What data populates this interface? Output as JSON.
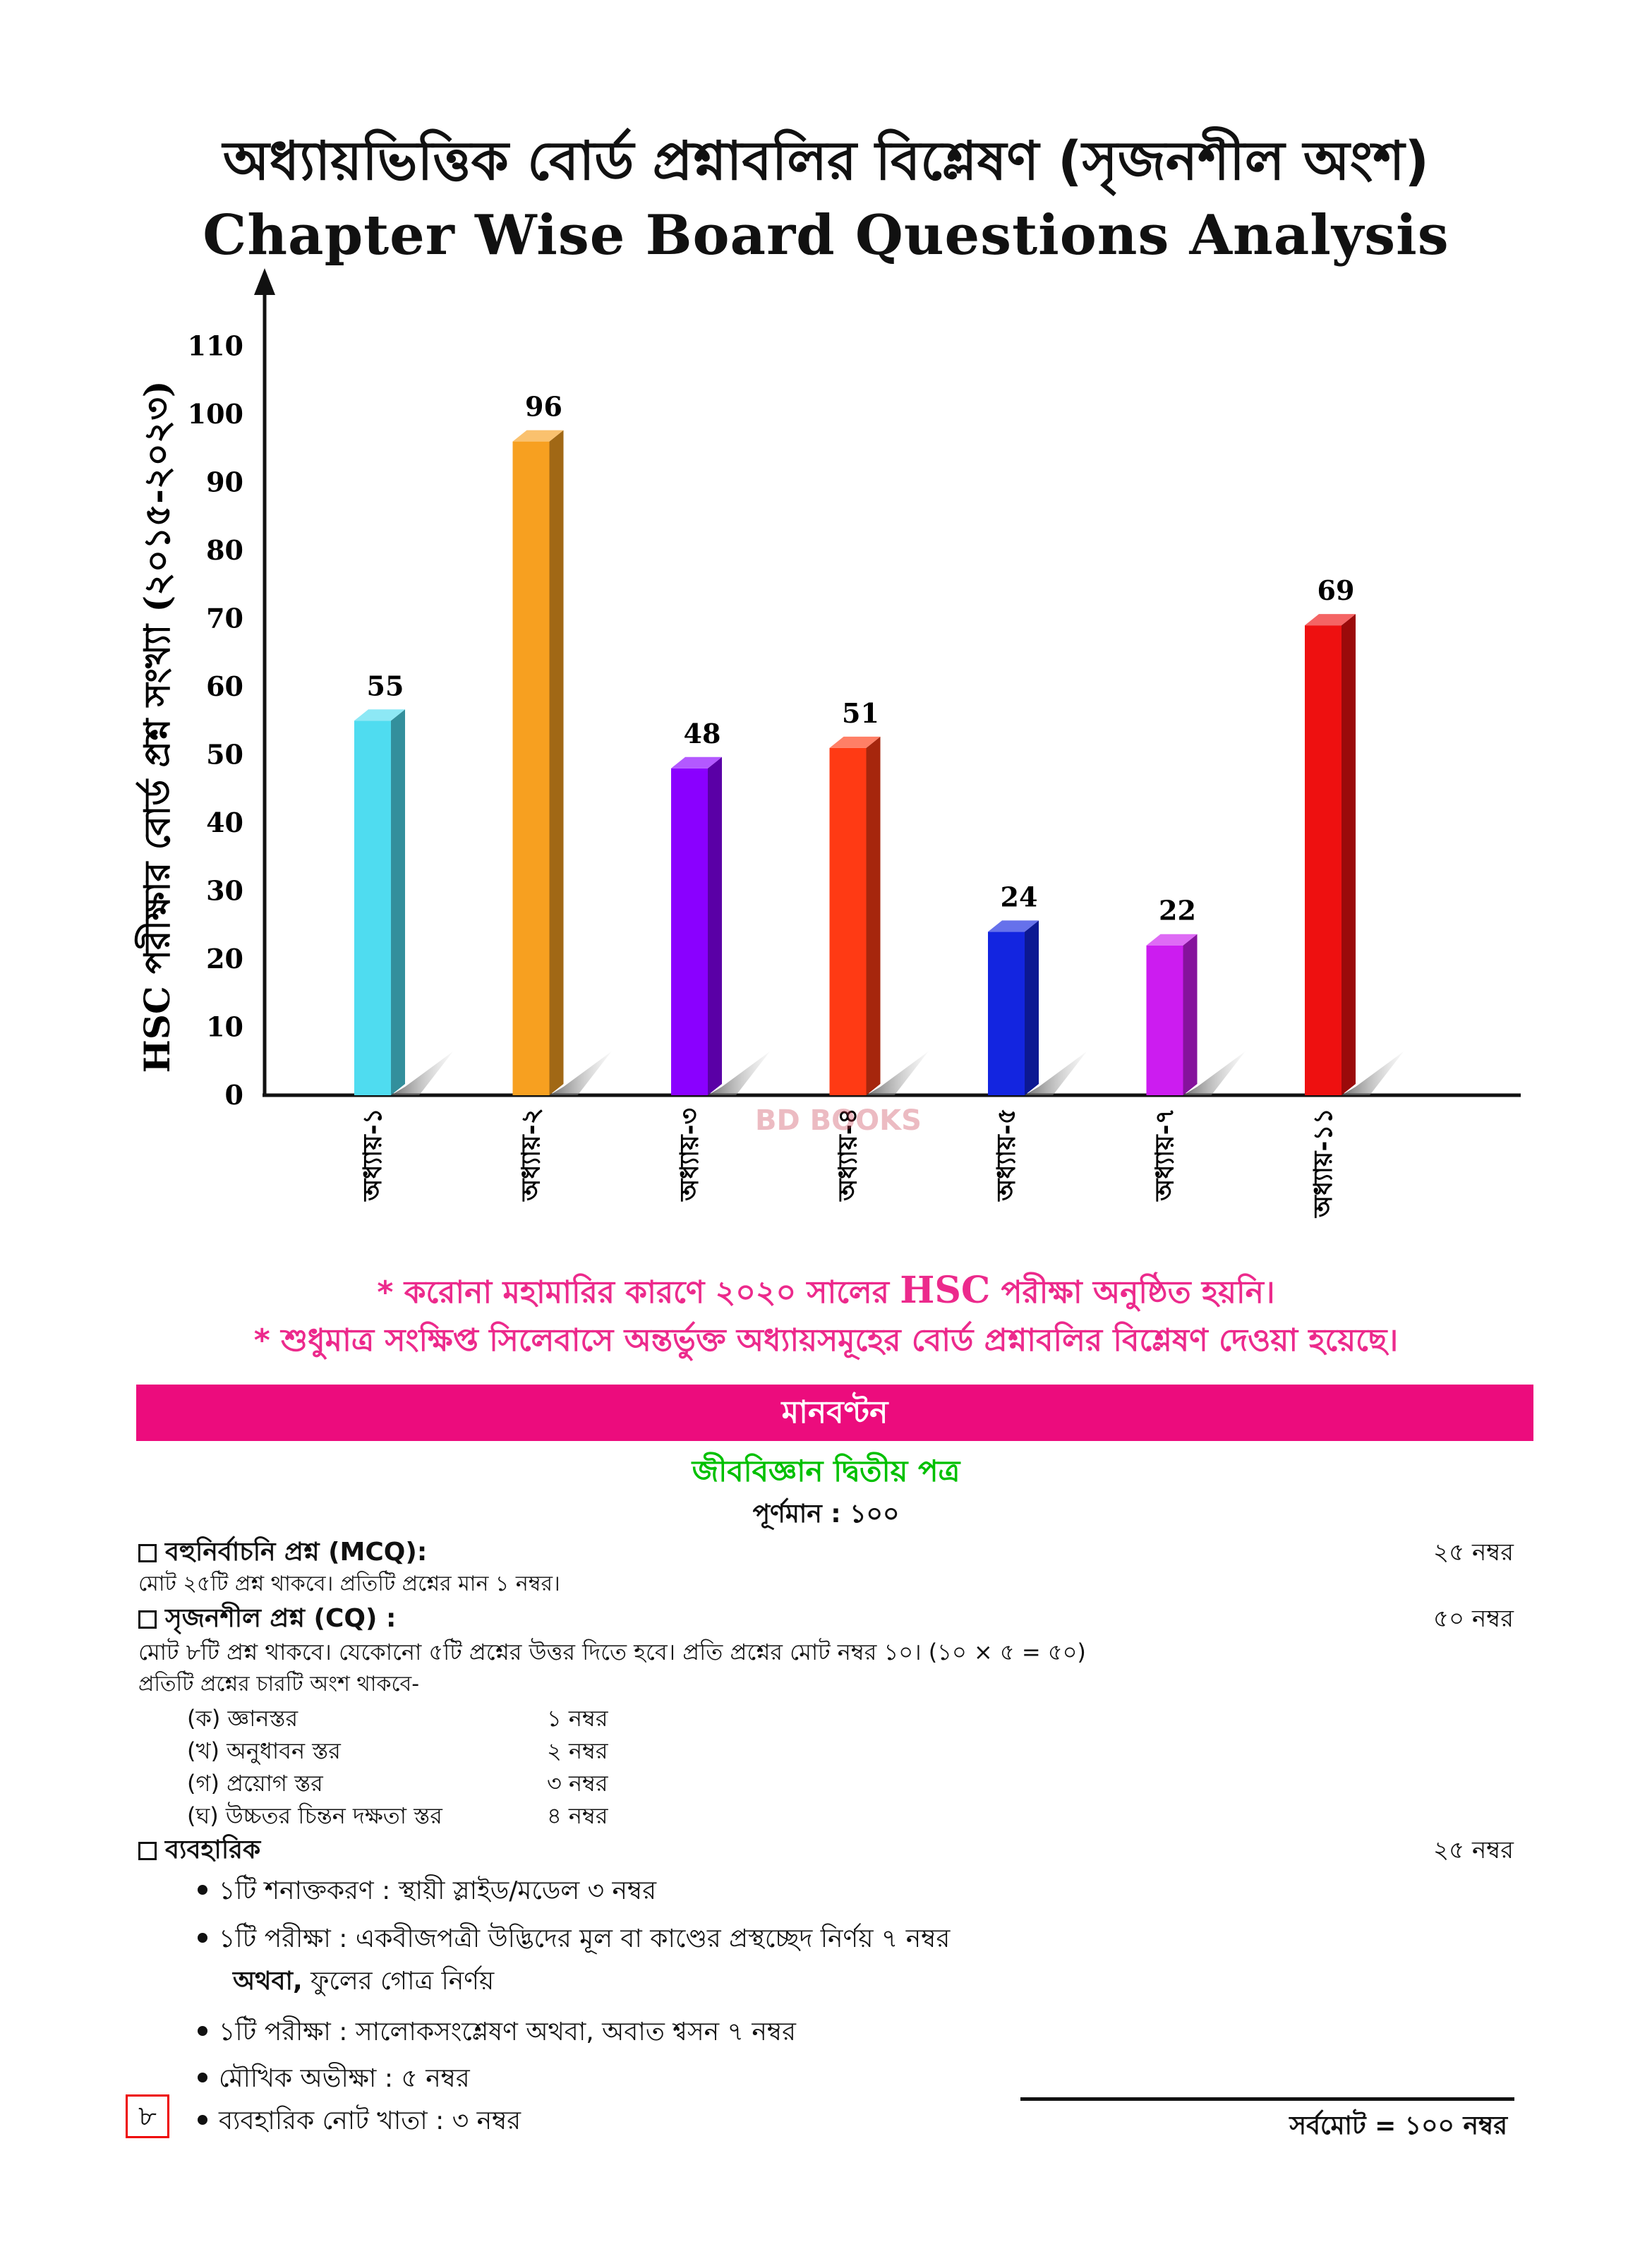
{
  "header": {
    "title_bn": "অধ্যায়ভিত্তিক বোর্ড প্রশ্নাবলির বিশ্লেষণ (সৃজনশীল অংশ)",
    "title_en": "Chapter Wise Board Questions Analysis"
  },
  "chart_data": {
    "type": "bar",
    "title": "Chapter Wise Board Questions Analysis",
    "xlabel": "",
    "ylabel": "HSC পরীক্ষার বোর্ড প্রশ্ন সংখ্যা (২০১৫-২০২৩)",
    "ylim": [
      0,
      110
    ],
    "yticks": [
      "0",
      "10",
      "20",
      "30",
      "40",
      "50",
      "60",
      "70",
      "80",
      "90",
      "100",
      "110"
    ],
    "categories": [
      "অধ্যায়-১",
      "অধ্যায়-২",
      "অধ্যায়-৩",
      "অধ্যায়-৪",
      "অধ্যায়-৫",
      "অধ্যায়-৭",
      "অধ্যায়-১১"
    ],
    "values": [
      55,
      96,
      48,
      51,
      24,
      22,
      69
    ],
    "data_labels": [
      "55",
      "96",
      "48",
      "51",
      "24",
      "22",
      "69"
    ],
    "colors": [
      "#4fdcf0",
      "#f7a020",
      "#8a00ff",
      "#ff3a14",
      "#1325e0",
      "#cc1cf0",
      "#ee1010"
    ],
    "grid": false,
    "legend": "none"
  },
  "watermark": "BD BOOKS",
  "notes": {
    "line1_a": "* করোনা মহামারির কারণে ২০২০ সালের ",
    "line1_hsc": "HSC",
    "line1_b": " পরীক্ষা অনুষ্ঠিত হয়নি।",
    "line2": "* শুধুমাত্র সংক্ষিপ্ত সিলেবাসে অন্তর্ভুক্ত অধ্যায়সমূহের বোর্ড প্রশ্নাবলির বিশ্লেষণ দেওয়া হয়েছে।"
  },
  "distribution": {
    "heading": "মানবণ্টন",
    "subject": "জীববিজ্ঞান দ্বিতীয় পত্র",
    "full_marks": "পূর্ণমান : ১০০",
    "mcq": {
      "title": "বহুনির্বাচনি প্রশ্ন (MCQ):",
      "marks": "২৫ নম্বর",
      "desc": "মোট ২৫টি প্রশ্ন থাকবে। প্রতিটি প্রশ্নের মান ১ নম্বর।"
    },
    "cq": {
      "title": "সৃজনশীল প্রশ্ন (CQ) :",
      "marks": "৫০ নম্বর",
      "desc1": "মোট ৮টি প্রশ্ন থাকবে। যেকোনো ৫টি প্রশ্নের উত্তর দিতে হবে। প্রতি প্রশ্নের মোট নম্বর ১০। (১০ × ৫ = ৫০)",
      "desc2": "প্রতিটি প্রশ্নের চারটি অংশ থাকবে-",
      "levels": [
        {
          "name": "(ক) জ্ঞানস্তর",
          "marks": "১ নম্বর"
        },
        {
          "name": "(খ) অনুধাবন স্তর",
          "marks": "২ নম্বর"
        },
        {
          "name": "(গ) প্রয়োগ স্তর",
          "marks": "৩ নম্বর"
        },
        {
          "name": "(ঘ) উচ্চতর চিন্তন দক্ষতা স্তর",
          "marks": "৪ নম্বর"
        }
      ]
    },
    "practical": {
      "title": "ব্যবহারিক",
      "marks": "২৫ নম্বর",
      "items": [
        "১টি শনাক্তকরণ : স্থায়ী স্লাইড/মডেল ৩ নম্বর",
        "১টি পরীক্ষা : একবীজপত্রী উদ্ভিদের মূল বা কাণ্ডের প্রস্থচ্ছেদ নির্ণয় ৭ নম্বর",
        "১টি পরীক্ষা : সালোকসংশ্লেষণ অথবা, অবাত শ্বসন ৭ নম্বর",
        "মৌখিক অভীক্ষা : ৫ নম্বর",
        "ব্যবহারিক নোট খাতা : ৩ নম্বর"
      ],
      "alt_bold": "অথবা,",
      "alt_text": " ফুলের গোত্র নির্ণয়"
    },
    "total": "সর্বমোট = ১০০ নম্বর"
  },
  "page_number": "৮"
}
